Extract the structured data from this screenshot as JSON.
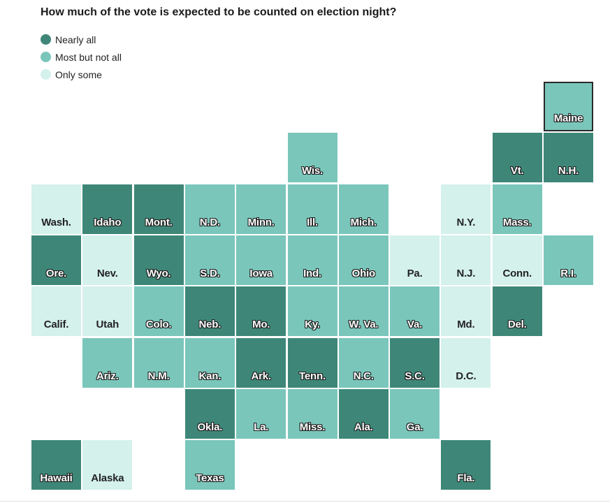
{
  "title": "How much of the vote is expected to be counted on election night?",
  "colors": {
    "nearly_all": "#3e8778",
    "most": "#7ac6bb",
    "some": "#d4f1ec"
  },
  "legend": [
    {
      "key": "nearly_all",
      "label": "Nearly all"
    },
    {
      "key": "most",
      "label": "Most but not all"
    },
    {
      "key": "some",
      "label": "Only some"
    }
  ],
  "chart_data": {
    "type": "tile-map",
    "title": "How much of the vote is expected to be counted on election night?",
    "categories": [
      "Nearly all",
      "Most but not all",
      "Only some"
    ],
    "states": [
      {
        "label": "Maine",
        "row": 0,
        "col": 10,
        "cat": "most",
        "highlight": true
      },
      {
        "label": "Wis.",
        "row": 1,
        "col": 5,
        "cat": "most"
      },
      {
        "label": "Vt.",
        "row": 1,
        "col": 9,
        "cat": "nearly_all"
      },
      {
        "label": "N.H.",
        "row": 1,
        "col": 10,
        "cat": "nearly_all"
      },
      {
        "label": "Wash.",
        "row": 2,
        "col": 0,
        "cat": "some"
      },
      {
        "label": "Idaho",
        "row": 2,
        "col": 1,
        "cat": "nearly_all"
      },
      {
        "label": "Mont.",
        "row": 2,
        "col": 2,
        "cat": "nearly_all"
      },
      {
        "label": "N.D.",
        "row": 2,
        "col": 3,
        "cat": "most"
      },
      {
        "label": "Minn.",
        "row": 2,
        "col": 4,
        "cat": "most"
      },
      {
        "label": "Ill.",
        "row": 2,
        "col": 5,
        "cat": "most"
      },
      {
        "label": "Mich.",
        "row": 2,
        "col": 6,
        "cat": "most"
      },
      {
        "label": "N.Y.",
        "row": 2,
        "col": 8,
        "cat": "some"
      },
      {
        "label": "Mass.",
        "row": 2,
        "col": 9,
        "cat": "most"
      },
      {
        "label": "Ore.",
        "row": 3,
        "col": 0,
        "cat": "nearly_all"
      },
      {
        "label": "Nev.",
        "row": 3,
        "col": 1,
        "cat": "some"
      },
      {
        "label": "Wyo.",
        "row": 3,
        "col": 2,
        "cat": "nearly_all"
      },
      {
        "label": "S.D.",
        "row": 3,
        "col": 3,
        "cat": "most"
      },
      {
        "label": "Iowa",
        "row": 3,
        "col": 4,
        "cat": "most"
      },
      {
        "label": "Ind.",
        "row": 3,
        "col": 5,
        "cat": "most"
      },
      {
        "label": "Ohio",
        "row": 3,
        "col": 6,
        "cat": "most"
      },
      {
        "label": "Pa.",
        "row": 3,
        "col": 7,
        "cat": "some"
      },
      {
        "label": "N.J.",
        "row": 3,
        "col": 8,
        "cat": "some"
      },
      {
        "label": "Conn.",
        "row": 3,
        "col": 9,
        "cat": "some"
      },
      {
        "label": "R.I.",
        "row": 3,
        "col": 10,
        "cat": "most"
      },
      {
        "label": "Calif.",
        "row": 4,
        "col": 0,
        "cat": "some"
      },
      {
        "label": "Utah",
        "row": 4,
        "col": 1,
        "cat": "some"
      },
      {
        "label": "Colo.",
        "row": 4,
        "col": 2,
        "cat": "most"
      },
      {
        "label": "Neb.",
        "row": 4,
        "col": 3,
        "cat": "nearly_all"
      },
      {
        "label": "Mo.",
        "row": 4,
        "col": 4,
        "cat": "nearly_all"
      },
      {
        "label": "Ky.",
        "row": 4,
        "col": 5,
        "cat": "most"
      },
      {
        "label": "W. Va.",
        "row": 4,
        "col": 6,
        "cat": "most"
      },
      {
        "label": "Va.",
        "row": 4,
        "col": 7,
        "cat": "most"
      },
      {
        "label": "Md.",
        "row": 4,
        "col": 8,
        "cat": "some"
      },
      {
        "label": "Del.",
        "row": 4,
        "col": 9,
        "cat": "nearly_all"
      },
      {
        "label": "Ariz.",
        "row": 5,
        "col": 1,
        "cat": "most"
      },
      {
        "label": "N.M.",
        "row": 5,
        "col": 2,
        "cat": "most"
      },
      {
        "label": "Kan.",
        "row": 5,
        "col": 3,
        "cat": "most"
      },
      {
        "label": "Ark.",
        "row": 5,
        "col": 4,
        "cat": "nearly_all"
      },
      {
        "label": "Tenn.",
        "row": 5,
        "col": 5,
        "cat": "nearly_all"
      },
      {
        "label": "N.C.",
        "row": 5,
        "col": 6,
        "cat": "most"
      },
      {
        "label": "S.C.",
        "row": 5,
        "col": 7,
        "cat": "nearly_all"
      },
      {
        "label": "D.C.",
        "row": 5,
        "col": 8,
        "cat": "some"
      },
      {
        "label": "Okla.",
        "row": 6,
        "col": 3,
        "cat": "nearly_all"
      },
      {
        "label": "La.",
        "row": 6,
        "col": 4,
        "cat": "most"
      },
      {
        "label": "Miss.",
        "row": 6,
        "col": 5,
        "cat": "most"
      },
      {
        "label": "Ala.",
        "row": 6,
        "col": 6,
        "cat": "nearly_all"
      },
      {
        "label": "Ga.",
        "row": 6,
        "col": 7,
        "cat": "most"
      },
      {
        "label": "Hawaii",
        "row": 7,
        "col": 0,
        "cat": "nearly_all"
      },
      {
        "label": "Alaska",
        "row": 7,
        "col": 1,
        "cat": "some"
      },
      {
        "label": "Texas",
        "row": 7,
        "col": 3,
        "cat": "most"
      },
      {
        "label": "Fla.",
        "row": 7,
        "col": 8,
        "cat": "nearly_all"
      }
    ]
  }
}
